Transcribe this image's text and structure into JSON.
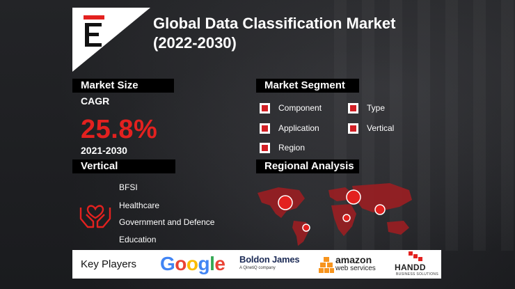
{
  "title": {
    "line1": "Global Data Classification Market",
    "line2": "(2022-2030)"
  },
  "logo": {
    "letter": "E",
    "accent_color": "#e3211f"
  },
  "market_size": {
    "header": "Market Size",
    "cagr_label": "CAGR",
    "cagr_value": "25.8%",
    "period": "2021-2030"
  },
  "market_segment": {
    "header": "Market Segment",
    "items": [
      "Component",
      "Type",
      "Application",
      "Vertical",
      "Region"
    ]
  },
  "vertical": {
    "header": "Vertical",
    "icon": "heart-hands-icon",
    "items": [
      "BFSI",
      "Healthcare",
      "Government and Defence",
      "Education"
    ]
  },
  "regional_analysis": {
    "header": "Regional Analysis",
    "icon": "world-map-icon"
  },
  "key_players": {
    "label": "Key Players",
    "google": [
      "G",
      "o",
      "o",
      "g",
      "l",
      "e"
    ],
    "boldon": {
      "name": "Boldon James",
      "sub": "A QinetiQ company"
    },
    "amazon": {
      "name": "amazon",
      "sub": "web services"
    },
    "handd": {
      "name": "HANDD",
      "sub": "BUSINESS SOLUTIONS"
    }
  },
  "colors": {
    "accent": "#e3211f",
    "background": "#1c1d20",
    "header_bg": "#000000"
  }
}
